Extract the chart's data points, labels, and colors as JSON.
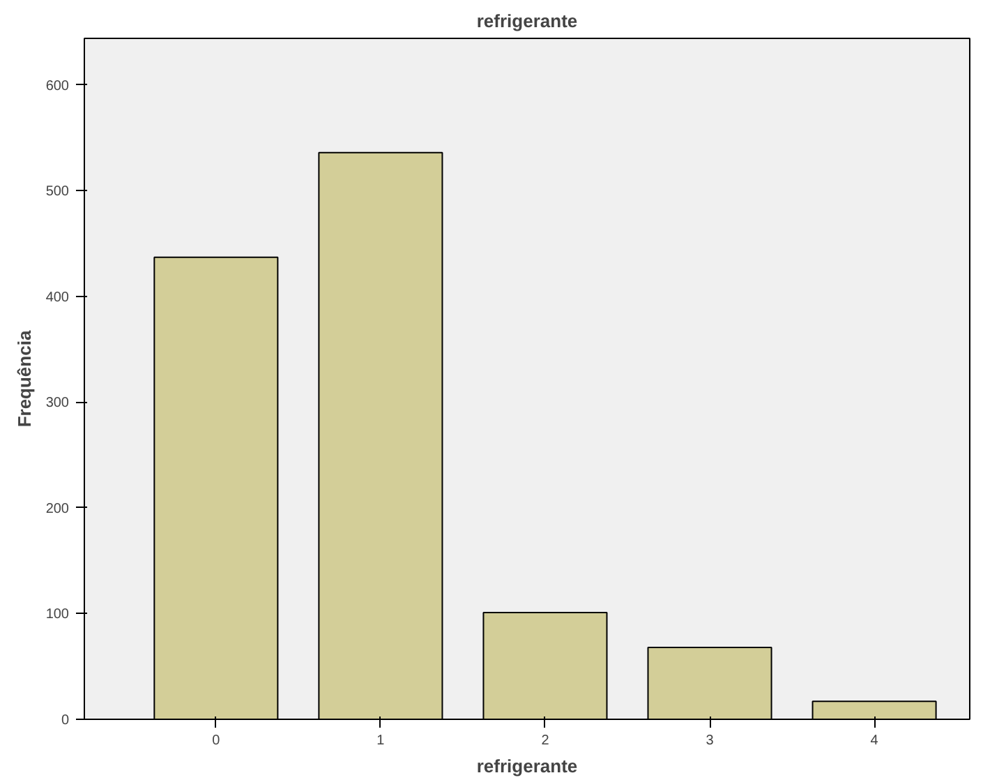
{
  "chart_data": {
    "type": "bar",
    "title": "refrigerante",
    "xlabel": "refrigerante",
    "ylabel": "Frequência",
    "categories": [
      "0",
      "1",
      "2",
      "3",
      "4"
    ],
    "values": [
      437,
      536,
      101,
      68,
      17
    ],
    "color": "#d3ce98",
    "ylim": [
      0,
      644
    ],
    "yticks": [
      0,
      100,
      200,
      300,
      400,
      500,
      600
    ],
    "grid": false
  }
}
